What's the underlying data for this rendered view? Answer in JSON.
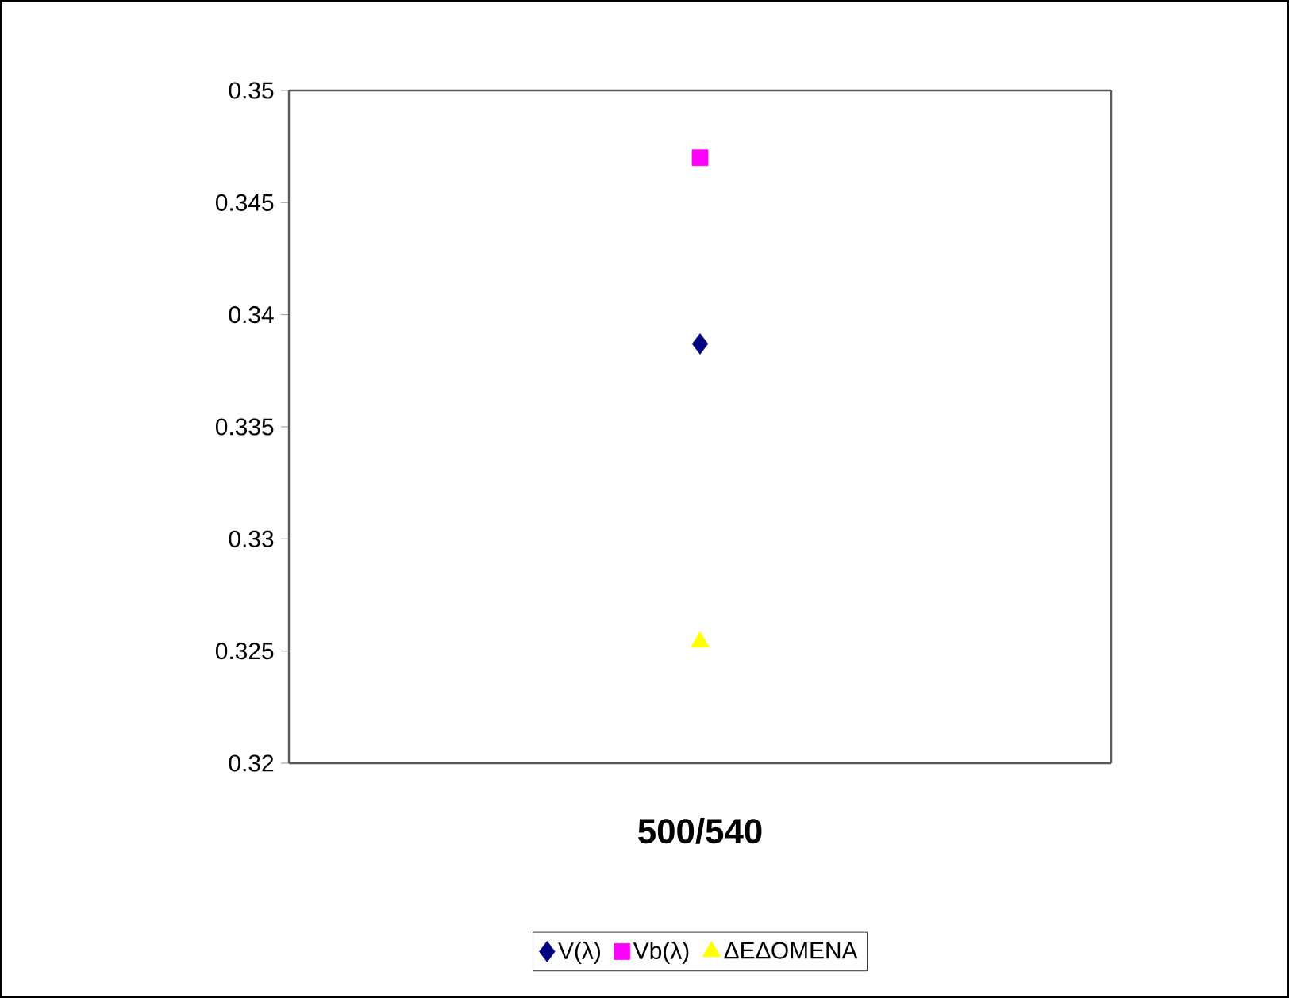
{
  "chart_data": {
    "type": "scatter",
    "categories": [
      "500/540"
    ],
    "series": [
      {
        "name": "V(λ)",
        "color": "#000080",
        "marker": "diamond",
        "values": [
          0.3387
        ]
      },
      {
        "name": "Vb(λ)",
        "color": "#ff00ff",
        "marker": "square",
        "values": [
          0.347
        ]
      },
      {
        "name": "ΔΕΔΟΜΕΝΑ",
        "color": "#ffff00",
        "marker": "triangle",
        "values": [
          0.3254
        ]
      }
    ],
    "ylim": [
      0.32,
      0.35
    ],
    "yticks": [
      {
        "value": 0.32,
        "label": "0.32"
      },
      {
        "value": 0.325,
        "label": "0.325"
      },
      {
        "value": 0.33,
        "label": "0.33"
      },
      {
        "value": 0.335,
        "label": "0.335"
      },
      {
        "value": 0.34,
        "label": "0.34"
      },
      {
        "value": 0.345,
        "label": "0.345"
      },
      {
        "value": 0.35,
        "label": "0.35"
      }
    ],
    "grid": false,
    "legend": "bottom"
  }
}
